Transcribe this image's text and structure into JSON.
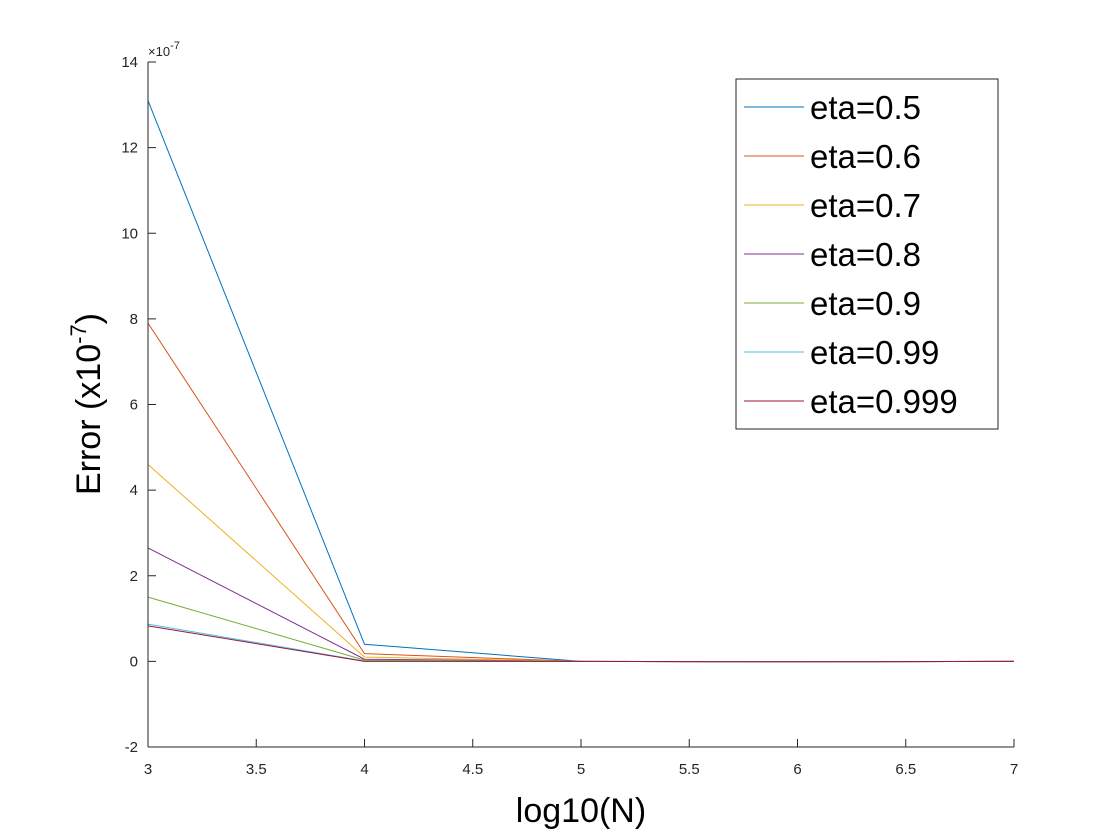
{
  "chart_data": {
    "type": "line",
    "xlabel": "log10(N)",
    "ylabel_main": "Error (x10",
    "ylabel_exp": "-7",
    "ylabel_close": ")",
    "y_multiplier": {
      "base": "×10",
      "exp": "-7"
    },
    "xlim": [
      3,
      7
    ],
    "ylim": [
      -2,
      14
    ],
    "x_ticks": [
      3,
      3.5,
      4,
      4.5,
      5,
      5.5,
      6,
      6.5,
      7
    ],
    "y_ticks": [
      -2,
      0,
      2,
      4,
      6,
      8,
      10,
      12,
      14
    ],
    "x_tick_labels": [
      "3",
      "3.5",
      "4",
      "4.5",
      "5",
      "5.5",
      "6",
      "6.5",
      "7"
    ],
    "y_tick_labels": [
      "-2",
      "0",
      "2",
      "4",
      "6",
      "8",
      "10",
      "12",
      "14"
    ],
    "x": [
      3,
      4,
      5,
      6,
      7
    ],
    "grid": false,
    "legend_position": "top-right",
    "series": [
      {
        "name": "eta=0.5",
        "color": "#0072BD",
        "values": [
          13.1,
          0.4,
          0.0,
          -0.01,
          0.0
        ]
      },
      {
        "name": "eta=0.6",
        "color": "#D95319",
        "values": [
          7.9,
          0.18,
          0.0,
          -0.01,
          0.0
        ]
      },
      {
        "name": "eta=0.7",
        "color": "#EDB120",
        "values": [
          4.6,
          0.1,
          0.0,
          -0.01,
          0.0
        ]
      },
      {
        "name": "eta=0.8",
        "color": "#7E2F8E",
        "values": [
          2.65,
          0.05,
          0.0,
          -0.01,
          0.0
        ]
      },
      {
        "name": "eta=0.9",
        "color": "#77AC30",
        "values": [
          1.5,
          0.03,
          0.0,
          -0.01,
          0.0
        ]
      },
      {
        "name": "eta=0.99",
        "color": "#4DBEEE",
        "values": [
          0.87,
          0.01,
          0.0,
          -0.01,
          0.0
        ]
      },
      {
        "name": "eta=0.999",
        "color": "#A2142F",
        "values": [
          0.83,
          0.0,
          0.0,
          -0.01,
          0.0
        ]
      }
    ]
  }
}
